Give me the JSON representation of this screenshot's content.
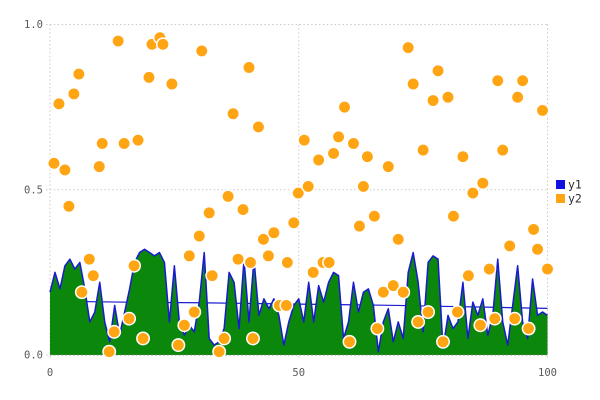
{
  "chart_data": {
    "type": "area",
    "title": "",
    "xlabel": "",
    "ylabel": "",
    "xlim": [
      0,
      100
    ],
    "ylim": [
      0.0,
      1.0
    ],
    "grid": "dotted",
    "legend_position": "right-center",
    "x_ticks": [
      {
        "v": 0,
        "label": "0"
      },
      {
        "v": 50,
        "label": "50"
      },
      {
        "v": 100,
        "label": "100"
      }
    ],
    "y_ticks": [
      {
        "v": 0.0,
        "label": "0.0"
      },
      {
        "v": 0.5,
        "label": "0.5"
      },
      {
        "v": 1.0,
        "label": "1.0"
      }
    ],
    "series": [
      {
        "name": "y1",
        "type": "area",
        "line_color": "#1a1ad0",
        "fill_color": "#0b870b",
        "x_start": 0,
        "x_step": 1,
        "values": [
          0.19,
          0.25,
          0.2,
          0.27,
          0.29,
          0.26,
          0.28,
          0.2,
          0.1,
          0.13,
          0.22,
          0.1,
          0.04,
          0.15,
          0.06,
          0.13,
          0.2,
          0.28,
          0.31,
          0.32,
          0.31,
          0.3,
          0.31,
          0.28,
          0.1,
          0.27,
          0.1,
          0.06,
          0.09,
          0.07,
          0.16,
          0.31,
          0.05,
          0.03,
          0.04,
          0.08,
          0.25,
          0.22,
          0.08,
          0.29,
          0.1,
          0.29,
          0.12,
          0.17,
          0.14,
          0.17,
          0.12,
          0.03,
          0.1,
          0.15,
          0.17,
          0.1,
          0.22,
          0.1,
          0.21,
          0.16,
          0.22,
          0.25,
          0.24,
          0.05,
          0.1,
          0.22,
          0.13,
          0.19,
          0.2,
          0.15,
          0.01,
          0.1,
          0.14,
          0.04,
          0.1,
          0.05,
          0.25,
          0.31,
          0.22,
          0.07,
          0.28,
          0.3,
          0.29,
          0.02,
          0.12,
          0.08,
          0.1,
          0.22,
          0.05,
          0.16,
          0.12,
          0.17,
          0.06,
          0.12,
          0.29,
          0.1,
          0.03,
          0.15,
          0.27,
          0.1,
          0.05,
          0.23,
          0.12,
          0.13,
          0.12
        ]
      },
      {
        "name": "y1-running-mean-line",
        "type": "line",
        "color": "#1a1ad0",
        "points": [
          [
            0,
            0.163
          ],
          [
            10,
            0.161
          ],
          [
            20,
            0.159
          ],
          [
            30,
            0.158
          ],
          [
            40,
            0.156
          ],
          [
            50,
            0.154
          ],
          [
            60,
            0.152
          ],
          [
            70,
            0.15
          ],
          [
            80,
            0.147
          ],
          [
            90,
            0.144
          ],
          [
            100,
            0.141
          ]
        ]
      },
      {
        "name": "y2",
        "type": "scatter",
        "color": "#ffa513",
        "edge_color": "#ffffff",
        "points": [
          [
            0.8,
            0.58
          ],
          [
            1.8,
            0.76
          ],
          [
            3.0,
            0.56
          ],
          [
            3.8,
            0.45
          ],
          [
            4.8,
            0.79
          ],
          [
            5.8,
            0.85
          ],
          [
            6.4,
            0.19
          ],
          [
            7.9,
            0.29
          ],
          [
            8.7,
            0.24
          ],
          [
            9.9,
            0.57
          ],
          [
            10.5,
            0.64
          ],
          [
            11.9,
            0.01
          ],
          [
            12.9,
            0.07
          ],
          [
            13.7,
            0.95
          ],
          [
            14.9,
            0.64
          ],
          [
            15.9,
            0.11
          ],
          [
            16.9,
            0.27
          ],
          [
            17.7,
            0.65
          ],
          [
            18.7,
            0.05
          ],
          [
            19.9,
            0.84
          ],
          [
            20.5,
            0.94
          ],
          [
            22.1,
            0.96
          ],
          [
            22.7,
            0.94
          ],
          [
            24.5,
            0.82
          ],
          [
            25.8,
            0.03
          ],
          [
            27.0,
            0.09
          ],
          [
            28.0,
            0.3
          ],
          [
            29.0,
            0.13
          ],
          [
            30.0,
            0.36
          ],
          [
            30.5,
            0.92
          ],
          [
            32.0,
            0.43
          ],
          [
            32.6,
            0.24
          ],
          [
            34.0,
            0.01
          ],
          [
            35.0,
            0.05
          ],
          [
            35.8,
            0.48
          ],
          [
            36.8,
            0.73
          ],
          [
            37.8,
            0.29
          ],
          [
            38.8,
            0.44
          ],
          [
            40.0,
            0.87
          ],
          [
            40.3,
            0.28
          ],
          [
            40.8,
            0.05
          ],
          [
            41.9,
            0.69
          ],
          [
            42.9,
            0.35
          ],
          [
            43.9,
            0.3
          ],
          [
            45.0,
            0.37
          ],
          [
            46.1,
            0.15
          ],
          [
            47.5,
            0.15
          ],
          [
            47.7,
            0.28
          ],
          [
            49.0,
            0.4
          ],
          [
            49.9,
            0.49
          ],
          [
            51.1,
            0.65
          ],
          [
            51.9,
            0.51
          ],
          [
            52.9,
            0.25
          ],
          [
            54.0,
            0.59
          ],
          [
            54.9,
            0.28
          ],
          [
            56.1,
            0.28
          ],
          [
            57.0,
            0.61
          ],
          [
            58.0,
            0.66
          ],
          [
            59.2,
            0.75
          ],
          [
            60.2,
            0.04
          ],
          [
            61.0,
            0.64
          ],
          [
            62.2,
            0.39
          ],
          [
            63.0,
            0.51
          ],
          [
            63.8,
            0.6
          ],
          [
            65.2,
            0.42
          ],
          [
            65.8,
            0.08
          ],
          [
            67.0,
            0.19
          ],
          [
            68.0,
            0.57
          ],
          [
            69.0,
            0.21
          ],
          [
            70.0,
            0.35
          ],
          [
            71.0,
            0.19
          ],
          [
            72.0,
            0.93
          ],
          [
            73.0,
            0.82
          ],
          [
            74.0,
            0.1
          ],
          [
            75.0,
            0.62
          ],
          [
            76.0,
            0.13
          ],
          [
            77.0,
            0.77
          ],
          [
            78.0,
            0.86
          ],
          [
            79.0,
            0.04
          ],
          [
            80.0,
            0.78
          ],
          [
            81.1,
            0.42
          ],
          [
            81.9,
            0.13
          ],
          [
            83.0,
            0.6
          ],
          [
            84.1,
            0.24
          ],
          [
            85.0,
            0.49
          ],
          [
            86.5,
            0.09
          ],
          [
            87.0,
            0.52
          ],
          [
            88.3,
            0.26
          ],
          [
            89.4,
            0.11
          ],
          [
            90.0,
            0.83
          ],
          [
            91.0,
            0.62
          ],
          [
            92.4,
            0.33
          ],
          [
            93.4,
            0.11
          ],
          [
            94.0,
            0.78
          ],
          [
            95.0,
            0.83
          ],
          [
            96.2,
            0.08
          ],
          [
            97.2,
            0.38
          ],
          [
            98.0,
            0.32
          ],
          [
            99.0,
            0.74
          ],
          [
            100.0,
            0.26
          ]
        ]
      }
    ],
    "legend": [
      {
        "label": "y1",
        "swatch_color": "#1010e0"
      },
      {
        "label": "y2",
        "swatch_color": "#ffa513"
      }
    ]
  }
}
